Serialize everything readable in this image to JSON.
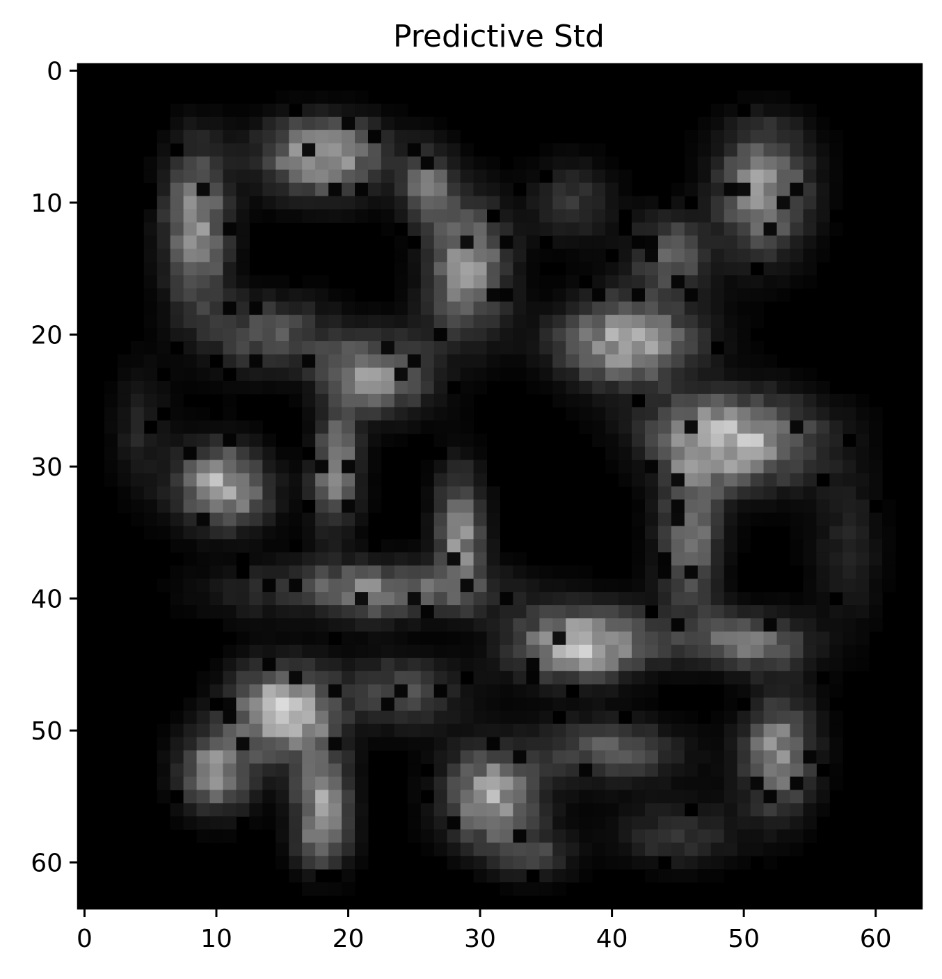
{
  "chart_data": {
    "type": "heatmap",
    "title": "Predictive Std",
    "colormap": "gray",
    "grid": false,
    "legend": "none",
    "rows": 64,
    "cols": 64,
    "xlim": [
      -0.5,
      63.5
    ],
    "ylim": [
      63.5,
      -0.5
    ],
    "x_ticks": [
      0,
      10,
      20,
      30,
      40,
      50,
      60
    ],
    "y_ticks": [
      0,
      10,
      20,
      30,
      40,
      50,
      60
    ],
    "x_tick_labels": [
      "0",
      "10",
      "20",
      "30",
      "40",
      "50",
      "60"
    ],
    "y_tick_labels": [
      "0",
      "10",
      "20",
      "30",
      "40",
      "50",
      "60"
    ],
    "blobs": [
      {
        "x": 8.5,
        "y": 12,
        "sx": 1.6,
        "sy": 4.0,
        "v": 0.62
      },
      {
        "x": 18,
        "y": 6.5,
        "sx": 3.0,
        "sy": 2.0,
        "v": 0.68
      },
      {
        "x": 29,
        "y": 15,
        "sx": 2.2,
        "sy": 3.2,
        "v": 0.62
      },
      {
        "x": 26,
        "y": 9,
        "sx": 1.4,
        "sy": 2.0,
        "v": 0.45
      },
      {
        "x": 51.5,
        "y": 9,
        "sx": 2.2,
        "sy": 3.2,
        "v": 0.62
      },
      {
        "x": 41,
        "y": 20.5,
        "sx": 3.5,
        "sy": 2.2,
        "v": 0.68
      },
      {
        "x": 22,
        "y": 23,
        "sx": 2.8,
        "sy": 2.0,
        "v": 0.58
      },
      {
        "x": 49,
        "y": 28,
        "sx": 4.2,
        "sy": 2.2,
        "v": 0.78
      },
      {
        "x": 10.5,
        "y": 31.5,
        "sx": 2.3,
        "sy": 2.0,
        "v": 0.72
      },
      {
        "x": 15,
        "y": 48.5,
        "sx": 2.4,
        "sy": 2.2,
        "v": 0.85
      },
      {
        "x": 10,
        "y": 53,
        "sx": 1.8,
        "sy": 2.0,
        "v": 0.6
      },
      {
        "x": 18,
        "y": 56,
        "sx": 1.4,
        "sy": 3.5,
        "v": 0.62
      },
      {
        "x": 31,
        "y": 55,
        "sx": 2.4,
        "sy": 2.5,
        "v": 0.65
      },
      {
        "x": 38,
        "y": 43.5,
        "sx": 3.5,
        "sy": 1.8,
        "v": 0.8
      },
      {
        "x": 50,
        "y": 43.5,
        "sx": 3.0,
        "sy": 1.6,
        "v": 0.55
      },
      {
        "x": 52.5,
        "y": 51.5,
        "sx": 1.8,
        "sy": 3.0,
        "v": 0.62
      },
      {
        "x": 40,
        "y": 51.5,
        "sx": 3.5,
        "sy": 1.6,
        "v": 0.38
      },
      {
        "x": 46,
        "y": 35,
        "sx": 1.6,
        "sy": 4.0,
        "v": 0.5
      },
      {
        "x": 21.5,
        "y": 39.5,
        "sx": 6.0,
        "sy": 1.4,
        "v": 0.55
      },
      {
        "x": 19,
        "y": 30,
        "sx": 1.2,
        "sy": 3.0,
        "v": 0.6
      },
      {
        "x": 28.5,
        "y": 35,
        "sx": 1.2,
        "sy": 3.0,
        "v": 0.6
      },
      {
        "x": 44.5,
        "y": 14,
        "sx": 2.0,
        "sy": 2.0,
        "v": 0.4
      },
      {
        "x": 37,
        "y": 10,
        "sx": 2.0,
        "sy": 2.0,
        "v": 0.22
      },
      {
        "x": 14,
        "y": 20,
        "sx": 3.0,
        "sy": 2.0,
        "v": 0.35
      },
      {
        "x": 24,
        "y": 47,
        "sx": 3.0,
        "sy": 1.8,
        "v": 0.32
      },
      {
        "x": 4,
        "y": 27,
        "sx": 1.6,
        "sy": 3.0,
        "v": 0.15
      },
      {
        "x": 58,
        "y": 36,
        "sx": 2.0,
        "sy": 4.0,
        "v": 0.14
      },
      {
        "x": 34,
        "y": 60,
        "sx": 2.0,
        "sy": 1.5,
        "v": 0.3
      },
      {
        "x": 45,
        "y": 58,
        "sx": 3.0,
        "sy": 1.8,
        "v": 0.22
      }
    ],
    "holes": [
      {
        "x": 38,
        "y": 31,
        "sx": 3.2,
        "sy": 2.8,
        "d": 0.95
      },
      {
        "x": 15.5,
        "y": 26.5,
        "sx": 1.8,
        "sy": 2.5,
        "d": 0.8
      },
      {
        "x": 15,
        "y": 14,
        "sx": 2.0,
        "sy": 2.0,
        "d": 0.7
      },
      {
        "x": 23.5,
        "y": 14,
        "sx": 2.0,
        "sy": 2.5,
        "d": 0.7
      },
      {
        "x": 47,
        "y": 47,
        "sx": 4.5,
        "sy": 2.0,
        "d": 0.75
      },
      {
        "x": 16,
        "y": 41,
        "sx": 2.0,
        "sy": 1.5,
        "d": 0.6
      },
      {
        "x": 35,
        "y": 16,
        "sx": 2.0,
        "sy": 2.0,
        "d": 0.6
      },
      {
        "x": 33.5,
        "y": 25,
        "sx": 1.8,
        "sy": 2.0,
        "d": 0.6
      },
      {
        "x": 51,
        "y": 38,
        "sx": 2.0,
        "sy": 2.0,
        "d": 0.6
      },
      {
        "x": 27,
        "y": 43,
        "sx": 2.5,
        "sy": 1.3,
        "d": 0.6
      }
    ]
  }
}
